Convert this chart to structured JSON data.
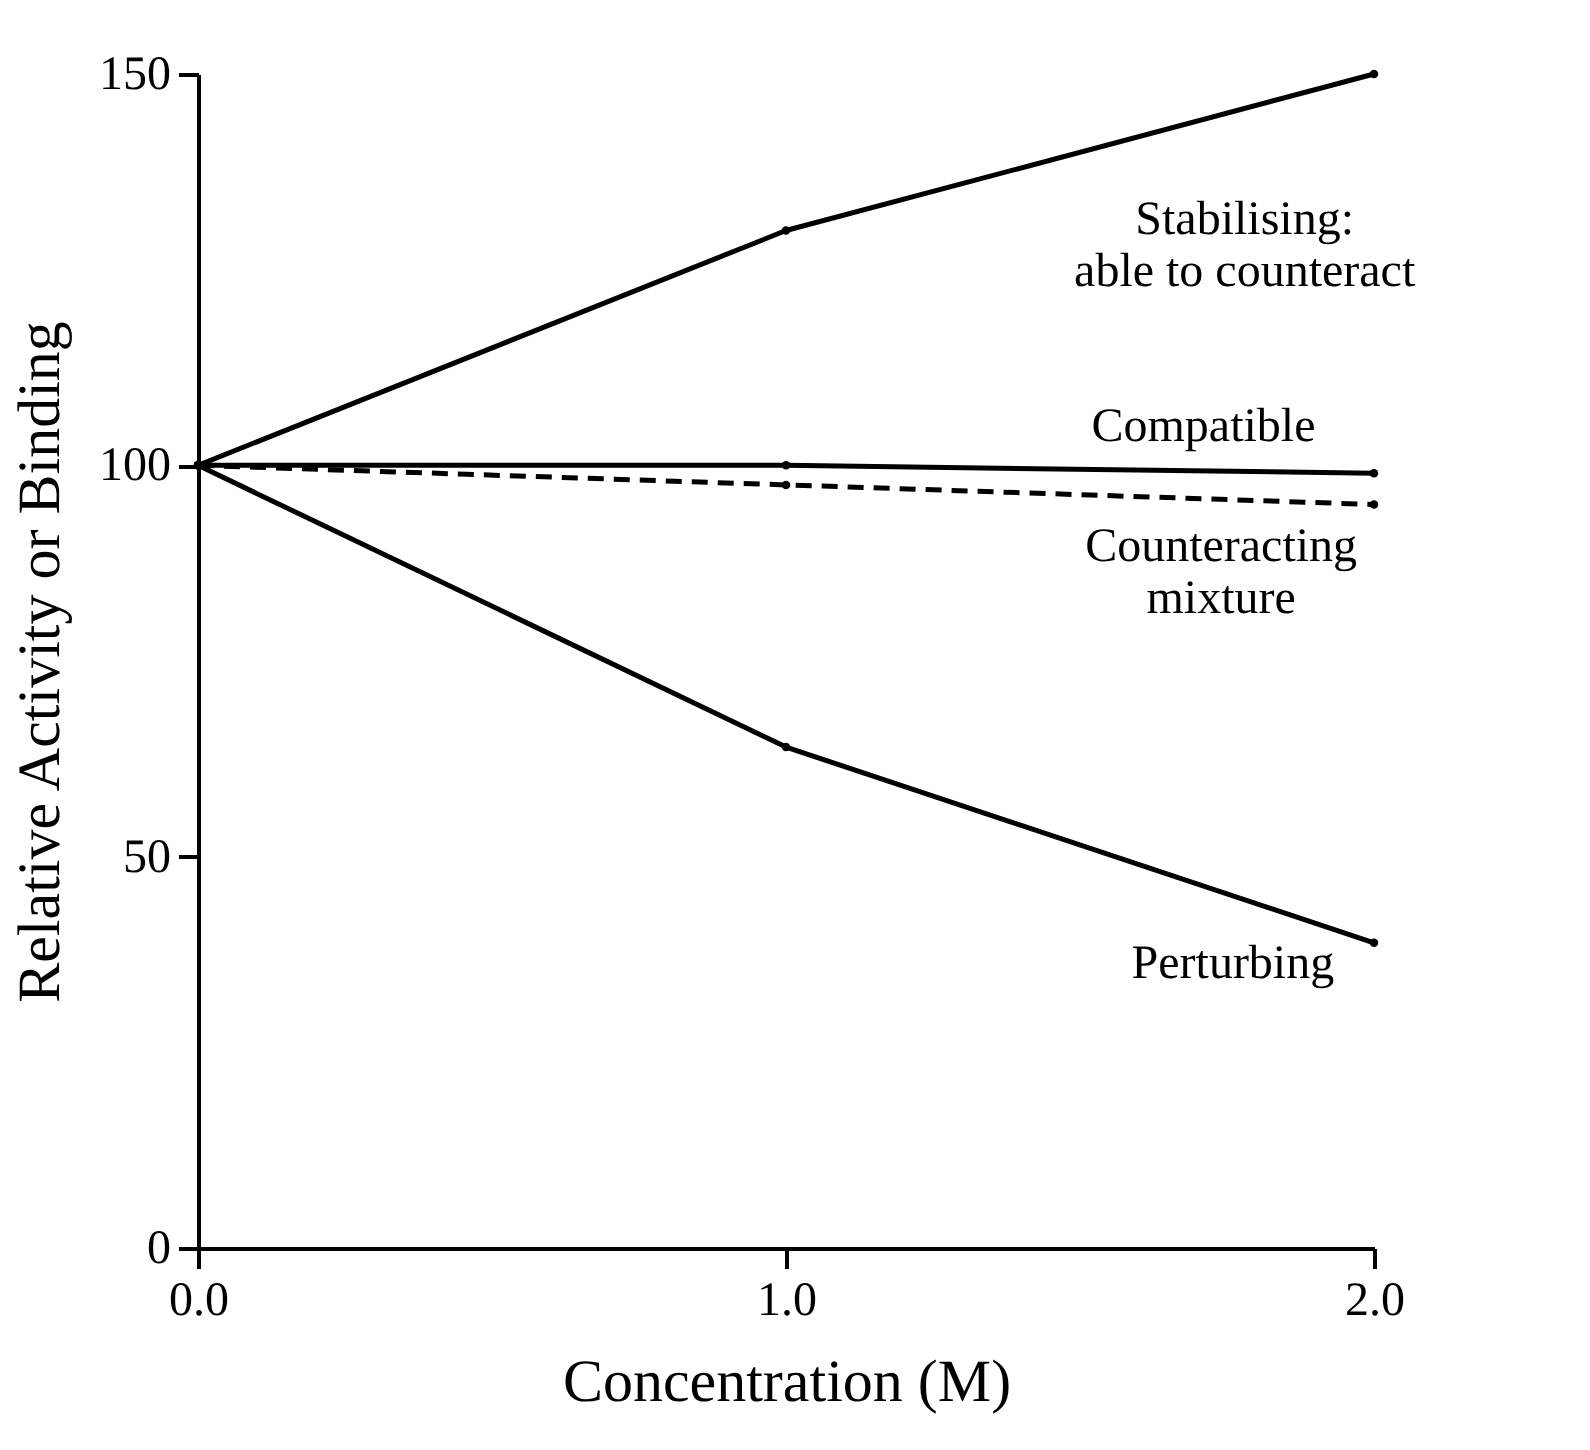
{
  "chart_data": {
    "type": "line",
    "xlabel": "Concentration (M)",
    "ylabel": "Relative Activity or Binding",
    "x": [
      0,
      1,
      2
    ],
    "xlim": [
      0,
      2
    ],
    "xticks": [
      {
        "value": 0,
        "label": "0.0"
      },
      {
        "value": 1,
        "label": "1.0"
      },
      {
        "value": 2,
        "label": "2.0"
      }
    ],
    "ylim": [
      0,
      150
    ],
    "yticks": [
      0,
      50,
      100,
      150
    ],
    "grid": false,
    "marker": "circle",
    "series": [
      {
        "name": "Stabilising:\nable to counteract",
        "color": "#000000",
        "line_style": "solid",
        "values": [
          100,
          130,
          150
        ]
      },
      {
        "name": "Compatible",
        "color": "#000000",
        "line_style": "solid",
        "values": [
          100,
          100,
          99
        ]
      },
      {
        "name": "Counteracting\nmixture",
        "color": "#000000",
        "line_style": "dashed",
        "values": [
          100,
          97.5,
          95
        ]
      },
      {
        "name": "Perturbing",
        "color": "#000000",
        "line_style": "solid",
        "values": [
          100,
          64,
          39
        ]
      }
    ]
  }
}
